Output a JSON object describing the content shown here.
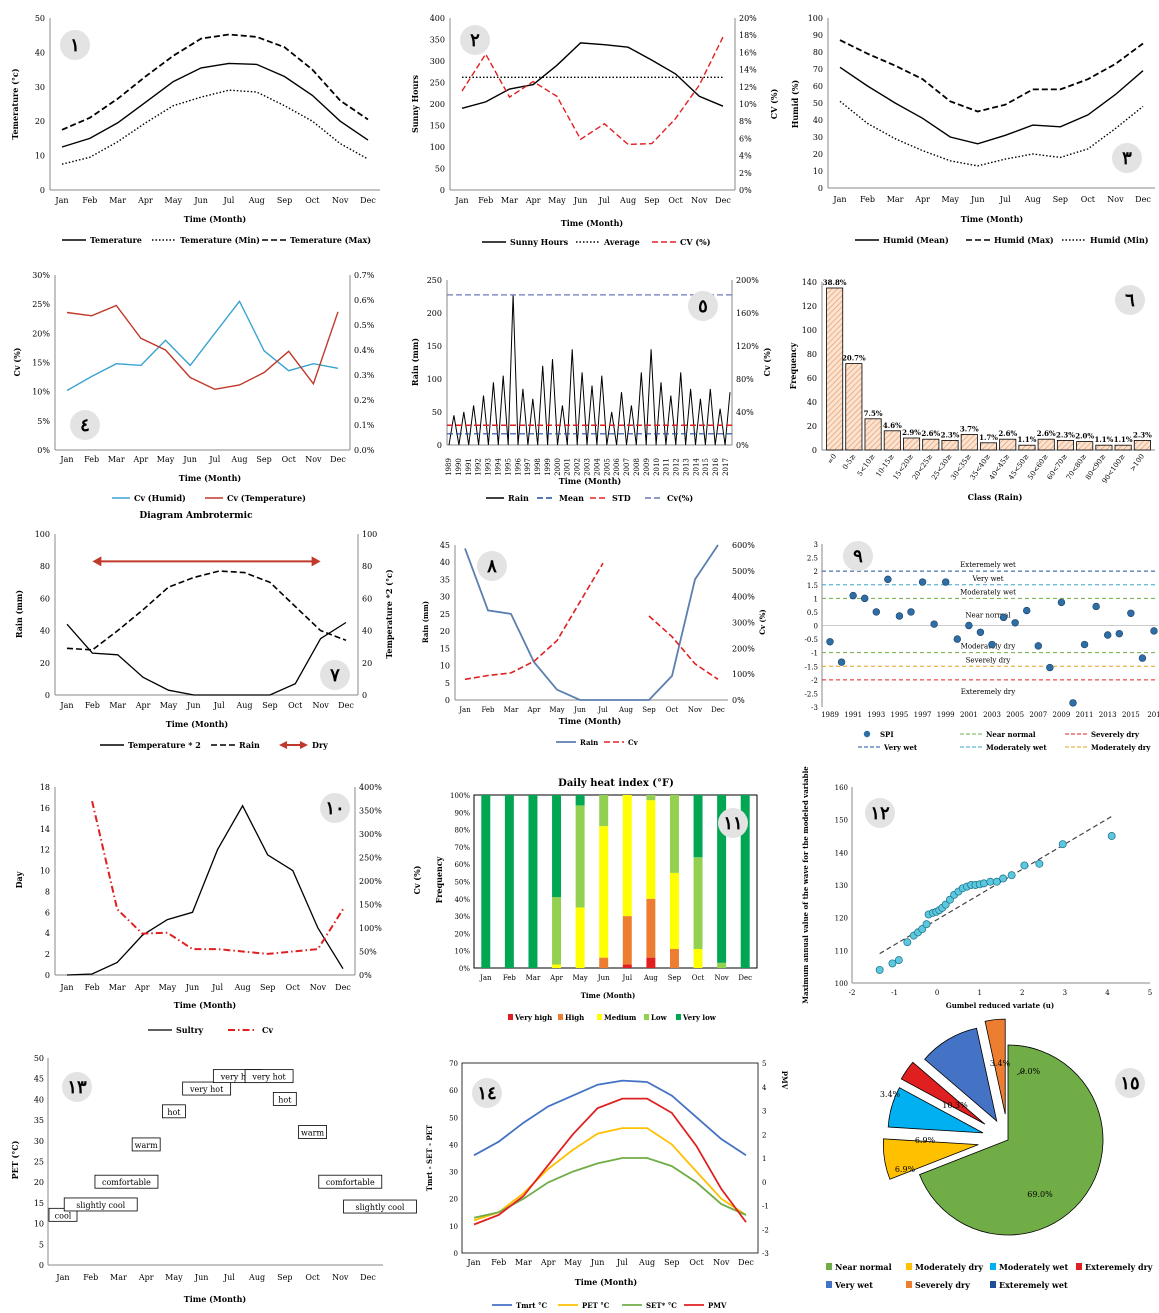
{
  "months": [
    "Jan",
    "Feb",
    "Mar",
    "Apr",
    "May",
    "Jun",
    "Jul",
    "Aug",
    "Sep",
    "Oct",
    "Nov",
    "Dec"
  ],
  "chart_data": [
    {
      "id": "c1",
      "type": "line",
      "badge": "١",
      "xlabel": "Time (Month)",
      "ylabel": "Temerature (°c)",
      "ylim": [
        0,
        50
      ],
      "series": [
        {
          "name": "Temerature",
          "values": [
            12.5,
            15,
            19.5,
            25.5,
            31.5,
            35.5,
            36.8,
            36.5,
            33,
            27.5,
            20,
            14.5
          ],
          "color": "#000000",
          "dash": "solid"
        },
        {
          "name": "Temerature (Min)",
          "values": [
            7.5,
            9.5,
            14,
            19.5,
            24.5,
            27,
            29,
            28.5,
            24.5,
            20,
            13.5,
            9
          ],
          "color": "#000000",
          "dash": "dot"
        },
        {
          "name": "Temerature (Max)",
          "values": [
            17.5,
            21,
            26.5,
            33,
            39,
            44,
            45.2,
            44.5,
            41.5,
            35,
            26,
            20.5
          ],
          "color": "#000000",
          "dash": "dash"
        }
      ]
    },
    {
      "id": "c2",
      "type": "line",
      "badge": "٢",
      "xlabel": "Time (Month)",
      "ylabel": "Sunny Hours",
      "y2label": "CV (%)",
      "ylim": [
        0,
        400
      ],
      "y2lim": [
        0,
        20
      ],
      "series": [
        {
          "name": "Sunny Hours",
          "values": [
            190,
            205,
            235,
            245,
            290,
            342,
            338,
            332,
            302,
            270,
            218,
            195
          ],
          "color": "#000000",
          "dash": "solid"
        },
        {
          "name": "Average",
          "values": [
            262,
            262,
            262,
            262,
            262,
            262,
            262,
            262,
            262,
            262,
            262,
            262
          ],
          "color": "#000000",
          "dash": "dot"
        },
        {
          "name": "CV (%)",
          "axis": "right",
          "values": [
            11.5,
            15.8,
            10.8,
            12.6,
            10.9,
            5.9,
            7.7,
            5.3,
            5.4,
            8.3,
            12.2,
            17.8
          ],
          "color": "#e02020",
          "dash": "dash"
        }
      ]
    },
    {
      "id": "c3",
      "type": "line",
      "badge": "٣",
      "xlabel": "Time (Month)",
      "ylabel": "Humid (%)",
      "ylim": [
        0,
        100
      ],
      "series": [
        {
          "name": "Humid (Mean)",
          "values": [
            71,
            60,
            50,
            41,
            30,
            26,
            31,
            37,
            36,
            43,
            55,
            69
          ],
          "color": "#000000",
          "dash": "solid"
        },
        {
          "name": "Humid (Max)",
          "values": [
            87,
            79,
            72,
            64,
            51,
            45,
            49,
            58,
            58,
            64,
            73,
            85
          ],
          "color": "#000000",
          "dash": "dash"
        },
        {
          "name": "Humid (Min)",
          "values": [
            51,
            38,
            29,
            22,
            16,
            13,
            17,
            20,
            18,
            23,
            35,
            48
          ],
          "color": "#000000",
          "dash": "dot"
        }
      ]
    },
    {
      "id": "c4",
      "type": "line",
      "badge": "٤",
      "xlabel": "Time (Month)",
      "ylabel": "Cv (%)",
      "ylim": [
        0,
        30
      ],
      "y2lim": [
        0,
        0.7
      ],
      "series": [
        {
          "name": "Cv (Humid)",
          "values": [
            10.2,
            12.6,
            14.8,
            14.5,
            18.8,
            14.5,
            20,
            25.5,
            17,
            13.6,
            14.8,
            14
          ],
          "color": "#3ba3d0",
          "dash": "solid"
        },
        {
          "name": "Cv (Temperature)",
          "axis": "right",
          "values": [
            0.55,
            0.537,
            0.578,
            0.447,
            0.4,
            0.29,
            0.243,
            0.26,
            0.31,
            0.395,
            0.265,
            0.553
          ],
          "color": "#c0392b",
          "dash": "solid"
        }
      ]
    },
    {
      "id": "c5",
      "type": "line",
      "badge": "٥",
      "xlabel": "Time (Month)",
      "ylabel": "Rain (mm)",
      "y2label": "Cv (%)",
      "ylim": [
        0,
        250
      ],
      "y2lim": [
        0,
        200
      ],
      "x_ticks": [
        "1989",
        "1990",
        "1991",
        "1992",
        "1993",
        "1994",
        "1995",
        "1996",
        "1997",
        "1998",
        "1999",
        "2000",
        "2001",
        "2002",
        "2003",
        "2004",
        "2005",
        "2006",
        "2007",
        "2008",
        "2009",
        "2010",
        "2011",
        "2012",
        "2013",
        "2014",
        "2015",
        "2016",
        "2017"
      ],
      "series": [
        {
          "name": "Rain",
          "values": [
            0,
            45,
            0,
            50,
            0,
            60,
            0,
            75,
            0,
            95,
            0,
            105,
            0,
            228,
            0,
            85,
            0,
            70,
            0,
            120,
            0,
            130,
            0,
            60,
            0,
            145,
            0,
            110,
            0,
            90,
            0,
            105,
            0,
            50,
            0,
            80,
            0,
            60,
            0,
            110,
            0,
            145,
            0,
            95,
            0,
            75,
            0,
            110,
            0,
            85,
            0,
            70,
            0,
            85,
            0,
            55,
            0,
            80
          ],
          "color": "#000000",
          "dash": "solid"
        },
        {
          "name": "Mean",
          "values": [
            17,
            17
          ],
          "color": "#1f4e9a",
          "dash": "dash"
        },
        {
          "name": "STD",
          "values": [
            30,
            30
          ],
          "color": "#e02020",
          "dash": "dash"
        },
        {
          "name": "Cv(%)",
          "axis": "right",
          "values": [
            182,
            182
          ],
          "color": "#6b78b8",
          "dash": "dash"
        }
      ]
    },
    {
      "id": "c6",
      "type": "bar",
      "badge": "٦",
      "xlabel": "Class (Rain)",
      "ylabel": "Frequency",
      "ylim": [
        0,
        140
      ],
      "categories": [
        "=0",
        "0-5≥",
        "5<10≥",
        "10-15≥",
        "15<20≥",
        "20<25≥",
        "25<30≥",
        "30<35≥",
        "35<40≥",
        "40<45≥",
        "45<50≥",
        "50<60≥",
        "60<70≥",
        "70<80≥",
        "80<90≥",
        "90<100≥",
        ">100"
      ],
      "values": [
        135,
        72,
        26,
        16,
        10,
        9,
        8,
        13,
        6,
        9,
        4,
        9,
        8,
        7,
        4,
        4,
        8
      ],
      "labels": [
        "38.8%",
        "20.7%",
        "7.5%",
        "4.6%",
        "2.9%",
        "2.6%",
        "2.3%",
        "3.7%",
        "1.7%",
        "2.6%",
        "1.1%",
        "2.6%",
        "2.3%",
        "2.0%",
        "1.1%",
        "1.1%",
        "2.3%"
      ]
    },
    {
      "id": "c7",
      "type": "line",
      "badge": "٧",
      "title": "Diagram Ambrotermic",
      "xlabel": "Time (Month)",
      "ylabel": "Rain (mm)",
      "y2label": "Temperature *2 (°c)",
      "ylim": [
        0,
        100
      ],
      "y2lim": [
        0,
        100
      ],
      "series": [
        {
          "name": "Temperature * 2",
          "values": [
            44,
            26,
            25,
            11,
            3,
            0,
            0,
            0,
            0,
            7,
            35,
            45
          ],
          "color": "#000000",
          "dash": "solid"
        },
        {
          "name": "Rain",
          "axis": "right",
          "values": [
            29,
            28,
            40,
            53,
            67,
            73,
            77,
            76,
            70,
            55,
            40,
            34
          ],
          "color": "#000000",
          "dash": "dash"
        },
        {
          "name": "Dry",
          "range": [
            "Feb",
            "Nov"
          ],
          "level": 83,
          "color": "#c0392b"
        }
      ]
    },
    {
      "id": "c8",
      "type": "line",
      "badge": "٨",
      "xlabel": "Time (Month)",
      "ylabel": "Rain (mm)",
      "y2label": "Cv (%)",
      "ylim": [
        0,
        45
      ],
      "y2lim": [
        0,
        600
      ],
      "series": [
        {
          "name": "Rain",
          "values": [
            44,
            26,
            25,
            11,
            3,
            0,
            0,
            0,
            0,
            7,
            35,
            45
          ],
          "color": "#5b7fb0",
          "dash": "solid"
        },
        {
          "name": "Cv",
          "axis": "right",
          "values": [
            80,
            95,
            105,
            150,
            230,
            380,
            530,
            null,
            325,
            245,
            140,
            80
          ],
          "color": "#e02020",
          "dash": "dash"
        }
      ]
    },
    {
      "id": "c9",
      "type": "scatter",
      "badge": "٩",
      "ylim": [
        -3,
        3
      ],
      "x_ticks": [
        "1989",
        "1991",
        "1993",
        "1995",
        "1997",
        "1999",
        "2001",
        "2003",
        "2005",
        "2007",
        "2009",
        "2011",
        "2013",
        "2015",
        "201"
      ],
      "x": [
        1989,
        1990,
        1991,
        1992,
        1993,
        1994,
        1995,
        1996,
        1997,
        1998,
        1999,
        2000,
        2001,
        2002,
        2003,
        2004,
        2005,
        2006,
        2007,
        2008,
        2009,
        2010,
        2011,
        2012,
        2013,
        2014,
        2015,
        2016,
        2017
      ],
      "values": [
        -0.6,
        -1.35,
        1.1,
        1.0,
        0.5,
        1.7,
        0.35,
        0.5,
        1.6,
        0.05,
        1.6,
        -0.5,
        0.0,
        -0.25,
        -0.7,
        0.3,
        0.1,
        0.55,
        -0.75,
        -1.55,
        0.85,
        -2.85,
        -0.7,
        0.7,
        -0.35,
        -0.3,
        0.45,
        -1.2,
        -0.2
      ],
      "bands": [
        {
          "label": "Exteremely wet",
          "level": 2.0,
          "color": "#1f4e9a"
        },
        {
          "label": "Very wet",
          "level": 1.5,
          "color": "#3ba3d0"
        },
        {
          "label": "Moderately wet",
          "level": 1.0,
          "color": "#70ad47"
        },
        {
          "label": "Near normal",
          "level": 0.0,
          "color": "#000000"
        },
        {
          "label": "Moderately dry",
          "level": -1.0,
          "color": "#70ad47"
        },
        {
          "label": "Severely dry",
          "level": -1.5,
          "color": "#e0a020"
        },
        {
          "label": "Exteremely dry",
          "level": -2.0,
          "color": "#e02020"
        }
      ],
      "legend": [
        "SPI",
        "Near normal",
        "Severely dry",
        "Very wet",
        "Moderately wet",
        "Moderately dry"
      ]
    },
    {
      "id": "c10",
      "type": "line",
      "badge": "١٠",
      "xlabel": "Time (Month)",
      "ylabel": "Day",
      "y2label": "Cv (%)",
      "ylim": [
        0,
        18
      ],
      "y2lim": [
        0,
        400
      ],
      "series": [
        {
          "name": "Sultry",
          "values": [
            0,
            0.1,
            1.2,
            3.8,
            5.3,
            6,
            12,
            16.2,
            11.5,
            10,
            4.5,
            0.6
          ],
          "color": "#000000",
          "dash": "solid"
        },
        {
          "name": "Cv",
          "axis": "right",
          "values": [
            null,
            370,
            140,
            88,
            90,
            55,
            55,
            50,
            45,
            50,
            55,
            140
          ],
          "color": "#e02020",
          "dash": "dashdot"
        }
      ]
    },
    {
      "id": "c11",
      "type": "bar",
      "badge": "١١",
      "title": "Daily heat index (°F)",
      "xlabel": "Time (Month)",
      "ylabel": "Frequency",
      "ylim": [
        0,
        100
      ],
      "series": [
        {
          "name": "Very high",
          "values": [
            0,
            0,
            0,
            0,
            0,
            0,
            2,
            6,
            0,
            0,
            0,
            0
          ],
          "color": "#e02020"
        },
        {
          "name": "High",
          "values": [
            0,
            0,
            0,
            0,
            0,
            6,
            28,
            34,
            11,
            0,
            0,
            0
          ],
          "color": "#ed7d31"
        },
        {
          "name": "Medium",
          "values": [
            0,
            0,
            0,
            2,
            35,
            76,
            70,
            57,
            44,
            11,
            0,
            0
          ],
          "color": "#ffff00"
        },
        {
          "name": "Low",
          "values": [
            0,
            0,
            0,
            39,
            59,
            18,
            0,
            3,
            45,
            53,
            3,
            0
          ],
          "color": "#92d050"
        },
        {
          "name": "Very low",
          "values": [
            100,
            100,
            100,
            59,
            6,
            0,
            0,
            0,
            0,
            36,
            97,
            100
          ],
          "color": "#00a651"
        }
      ]
    },
    {
      "id": "c12",
      "type": "scatter",
      "badge": "١٢",
      "xlabel": "Gumbel reduced variate (u)",
      "ylabel": "Maximum annual value of the wave for the modeled variable",
      "xlim": [
        -2,
        5
      ],
      "ylim": [
        100,
        160
      ],
      "x": [
        -1.35,
        -1.05,
        -0.9,
        -0.7,
        -0.55,
        -0.45,
        -0.35,
        -0.25,
        -0.2,
        -0.1,
        -0.02,
        0.05,
        0.12,
        0.2,
        0.3,
        0.4,
        0.5,
        0.6,
        0.7,
        0.8,
        0.9,
        1.0,
        1.1,
        1.25,
        1.4,
        1.55,
        1.75,
        2.05,
        2.4,
        2.95,
        4.1
      ],
      "values": [
        104,
        106,
        107,
        112.5,
        114.5,
        115.5,
        116.5,
        118,
        121,
        121.5,
        121.8,
        122.3,
        123,
        124,
        125.5,
        127,
        128,
        129,
        129.5,
        130,
        130,
        130.2,
        130.5,
        131,
        131,
        132,
        133,
        136,
        136.5,
        142.5,
        145
      ],
      "fit": [
        [
          -1.35,
          109
        ],
        [
          4.1,
          151
        ]
      ]
    },
    {
      "id": "c13",
      "type": "scatter",
      "badge": "١٣",
      "xlabel": "Time (Month)",
      "ylabel": "PET (°C)",
      "ylim": [
        0,
        50
      ],
      "values": [
        12,
        14.5,
        20,
        29,
        37,
        42.5,
        45.5,
        45.5,
        40,
        32,
        20,
        14
      ],
      "labels": [
        "cool",
        "slightly cool",
        "comfortable",
        "warm",
        "hot",
        "very hot",
        "very hot",
        "very hot",
        "hot",
        "warm",
        "comfortable",
        "slightly cool"
      ]
    },
    {
      "id": "c14",
      "type": "line",
      "badge": "١٤",
      "xlabel": "Time (Month)",
      "ylabel": "Tmrt - SET - PET",
      "y2label": "PMV",
      "ylim": [
        0,
        70
      ],
      "y2lim": [
        -3,
        5
      ],
      "series": [
        {
          "name": "Tmrt °C",
          "values": [
            36,
            41,
            48,
            54,
            58,
            62,
            63.5,
            63,
            58,
            50,
            42,
            36
          ],
          "color": "#4472c4"
        },
        {
          "name": "PET °C",
          "values": [
            12,
            15,
            22,
            31,
            38,
            44,
            46,
            46,
            40,
            30,
            20,
            14
          ],
          "color": "#ffc000"
        },
        {
          "name": "SET* °C",
          "values": [
            13,
            15,
            20,
            26,
            30,
            33,
            35,
            35,
            32,
            26,
            18,
            14
          ],
          "color": "#70ad47"
        },
        {
          "name": "PMV",
          "axis": "right",
          "values": [
            -1.8,
            -1.4,
            -0.6,
            0.7,
            2.0,
            3.1,
            3.5,
            3.5,
            2.9,
            1.5,
            -0.3,
            -1.7
          ],
          "color": "#e02020"
        }
      ]
    },
    {
      "id": "c15",
      "type": "pie",
      "badge": "١٥",
      "values": [
        69.0,
        6.9,
        6.9,
        3.4,
        10.3,
        3.4,
        0.0
      ],
      "labels": [
        "69.0%",
        "6.9%",
        "6.9%",
        "3.4%",
        "10.3%",
        "3.4%",
        "0.0%"
      ],
      "legend": [
        "Near normal",
        "Moderately dry",
        "Moderately wet",
        "Exteremely dry",
        "Very wet",
        "Severely dry",
        "Exteremely wet"
      ],
      "colors": [
        "#70ad47",
        "#ffc000",
        "#00b0f0",
        "#e02020",
        "#4472c4",
        "#ed7d31",
        "#1f4e9a"
      ]
    }
  ]
}
